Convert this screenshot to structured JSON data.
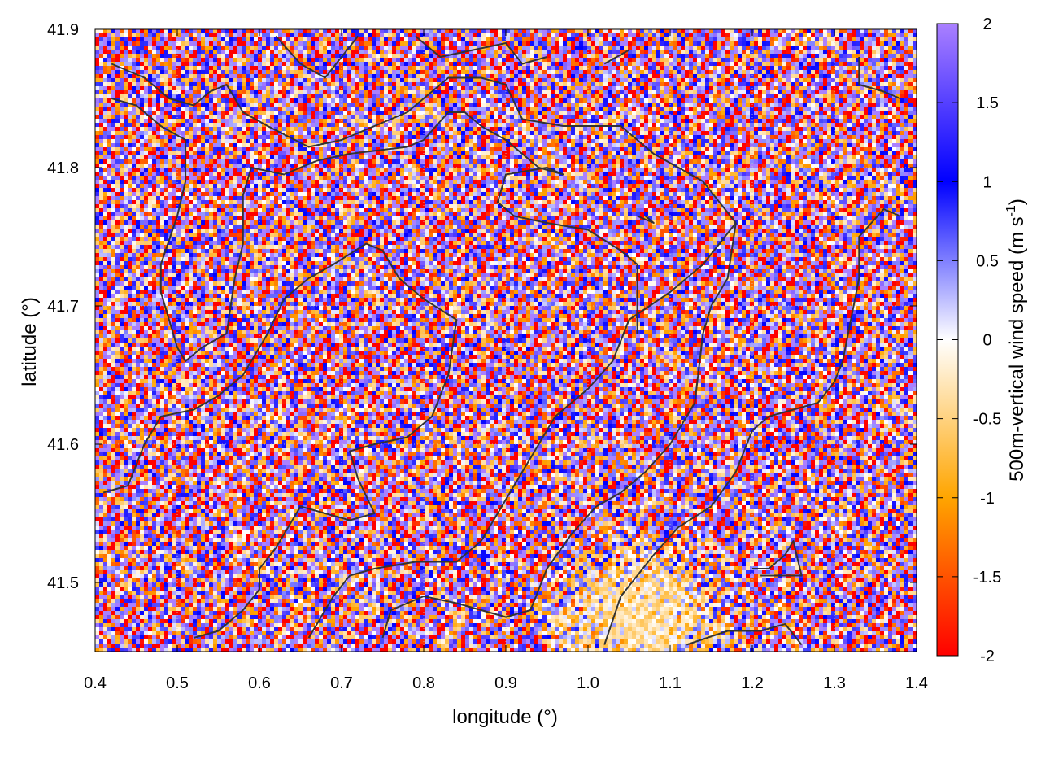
{
  "chart_data": {
    "type": "heatmap",
    "title": "",
    "xlabel": "longitude (°)",
    "ylabel": "latitude (°)",
    "xlim": [
      0.4,
      1.4
    ],
    "ylim": [
      41.45,
      41.9
    ],
    "xticks": [
      0.4,
      0.5,
      0.6,
      0.7,
      0.8,
      0.9,
      1.0,
      1.1,
      1.2,
      1.3,
      1.4
    ],
    "xtick_labels": [
      "0.4",
      "0.5",
      "0.6",
      "0.7",
      "0.8",
      "0.9",
      "1.0",
      "1.1",
      "1.2",
      "1.3",
      "1.4"
    ],
    "yticks": [
      41.5,
      41.6,
      41.7,
      41.8,
      41.9
    ],
    "ytick_labels": [
      "41.5",
      "41.6",
      "41.7",
      "41.8",
      "41.9"
    ],
    "colorbar": {
      "label": "500m-vertical wind speed (m s-1)",
      "label_main": "500m-vertical wind speed (m s",
      "label_sup": "-1",
      "label_end": ")",
      "range": [
        -2,
        2
      ],
      "ticks": [
        2,
        1.5,
        1,
        0.5,
        0,
        -0.5,
        -1,
        -1.5,
        -2
      ],
      "tick_labels": [
        "2",
        "1.5",
        "1",
        "0.5",
        "0",
        "-0.5",
        "-1",
        "-1.5",
        "-2"
      ],
      "colormap": [
        {
          "value": -2,
          "color": "#ff0000"
        },
        {
          "value": -1,
          "color": "#ffa500"
        },
        {
          "value": 0,
          "color": "#ffffff"
        },
        {
          "value": 1,
          "color": "#0000ff"
        },
        {
          "value": 2,
          "color": "#aa80ff"
        }
      ]
    },
    "grid": true,
    "field_description": "Dense fine-scale alternating updraft/downdraft streaks, values mostly between -2 and 2 m/s; smoother weak negative region around lon 0.95-1.15, lat 41.45-41.55",
    "coastline_paths": [
      [
        [
          0.42,
          41.875
        ],
        [
          0.46,
          41.865
        ],
        [
          0.49,
          41.85
        ],
        [
          0.52,
          41.845
        ],
        [
          0.54,
          41.855
        ],
        [
          0.56,
          41.86
        ],
        [
          0.58,
          41.84
        ],
        [
          0.61,
          41.83
        ],
        [
          0.66,
          41.815
        ],
        [
          0.7,
          41.82
        ],
        [
          0.74,
          41.83
        ],
        [
          0.78,
          41.84
        ],
        [
          0.8,
          41.85
        ],
        [
          0.83,
          41.865
        ],
        [
          0.87,
          41.865
        ],
        [
          0.9,
          41.86
        ],
        [
          0.92,
          41.835
        ],
        [
          0.97,
          41.83
        ],
        [
          1.04,
          41.83
        ],
        [
          1.08,
          41.81
        ],
        [
          1.14,
          41.79
        ],
        [
          1.18,
          41.76
        ]
      ],
      [
        [
          0.42,
          41.85
        ],
        [
          0.45,
          41.845
        ],
        [
          0.48,
          41.83
        ],
        [
          0.51,
          41.82
        ],
        [
          0.51,
          41.79
        ],
        [
          0.5,
          41.765
        ],
        [
          0.48,
          41.73
        ],
        [
          0.48,
          41.71
        ],
        [
          0.5,
          41.67
        ],
        [
          0.51,
          41.66
        ],
        [
          0.53,
          41.67
        ],
        [
          0.56,
          41.68
        ],
        [
          0.57,
          41.72
        ],
        [
          0.58,
          41.745
        ],
        [
          0.58,
          41.78
        ],
        [
          0.59,
          41.8
        ],
        [
          0.63,
          41.795
        ],
        [
          0.67,
          41.805
        ],
        [
          0.71,
          41.81
        ],
        [
          0.78,
          41.815
        ],
        [
          0.8,
          41.82
        ],
        [
          0.83,
          41.84
        ],
        [
          0.85,
          41.84
        ],
        [
          0.87,
          41.83
        ],
        [
          0.9,
          41.82
        ],
        [
          0.92,
          41.81
        ],
        [
          0.94,
          41.8
        ],
        [
          0.97,
          41.795
        ],
        [
          0.95,
          41.8
        ],
        [
          0.9,
          41.795
        ],
        [
          0.89,
          41.775
        ],
        [
          0.91,
          41.765
        ],
        [
          0.95,
          41.76
        ],
        [
          1.0,
          41.755
        ],
        [
          1.04,
          41.74
        ],
        [
          1.06,
          41.73
        ],
        [
          1.06,
          41.7
        ],
        [
          1.06,
          41.68
        ]
      ],
      [
        [
          0.41,
          41.565
        ],
        [
          0.44,
          41.57
        ],
        [
          0.46,
          41.6
        ],
        [
          0.48,
          41.62
        ],
        [
          0.52,
          41.625
        ],
        [
          0.55,
          41.635
        ],
        [
          0.58,
          41.65
        ],
        [
          0.61,
          41.68
        ],
        [
          0.63,
          41.705
        ],
        [
          0.66,
          41.72
        ],
        [
          0.69,
          41.73
        ],
        [
          0.73,
          41.745
        ],
        [
          0.75,
          41.74
        ],
        [
          0.77,
          41.72
        ],
        [
          0.8,
          41.705
        ],
        [
          0.84,
          41.69
        ],
        [
          0.83,
          41.65
        ],
        [
          0.81,
          41.62
        ],
        [
          0.78,
          41.605
        ],
        [
          0.74,
          41.6
        ],
        [
          0.71,
          41.595
        ],
        [
          0.72,
          41.575
        ],
        [
          0.74,
          41.55
        ],
        [
          0.71,
          41.545
        ],
        [
          0.68,
          41.55
        ],
        [
          0.65,
          41.555
        ],
        [
          0.62,
          41.525
        ],
        [
          0.6,
          41.51
        ],
        [
          0.6,
          41.495
        ],
        [
          0.58,
          41.48
        ],
        [
          0.55,
          41.465
        ],
        [
          0.52,
          41.46
        ]
      ],
      [
        [
          0.66,
          41.46
        ],
        [
          0.69,
          41.49
        ],
        [
          0.71,
          41.505
        ],
        [
          0.74,
          41.51
        ],
        [
          0.79,
          41.515
        ],
        [
          0.84,
          41.515
        ],
        [
          0.87,
          41.53
        ],
        [
          0.9,
          41.56
        ],
        [
          0.93,
          41.59
        ],
        [
          0.96,
          41.62
        ],
        [
          1.0,
          41.64
        ],
        [
          1.03,
          41.66
        ],
        [
          1.05,
          41.69
        ],
        [
          1.1,
          41.71
        ],
        [
          1.14,
          41.73
        ],
        [
          1.18,
          41.76
        ]
      ],
      [
        [
          0.75,
          41.46
        ],
        [
          0.76,
          41.48
        ],
        [
          0.8,
          41.49
        ],
        [
          0.84,
          41.485
        ],
        [
          0.87,
          41.48
        ],
        [
          0.9,
          41.475
        ],
        [
          0.93,
          41.48
        ],
        [
          0.95,
          41.51
        ],
        [
          0.98,
          41.535
        ],
        [
          1.01,
          41.555
        ],
        [
          1.04,
          41.565
        ],
        [
          1.07,
          41.58
        ],
        [
          1.1,
          41.6
        ],
        [
          1.13,
          41.63
        ],
        [
          1.14,
          41.68
        ],
        [
          1.15,
          41.7
        ],
        [
          1.17,
          41.72
        ],
        [
          1.18,
          41.76
        ]
      ],
      [
        [
          1.02,
          41.455
        ],
        [
          1.04,
          41.49
        ],
        [
          1.08,
          41.52
        ],
        [
          1.11,
          41.54
        ],
        [
          1.15,
          41.555
        ],
        [
          1.18,
          41.58
        ],
        [
          1.2,
          41.61
        ],
        [
          1.22,
          41.62
        ],
        [
          1.25,
          41.625
        ],
        [
          1.28,
          41.63
        ],
        [
          1.3,
          41.645
        ],
        [
          1.31,
          41.66
        ],
        [
          1.32,
          41.69
        ],
        [
          1.33,
          41.72
        ],
        [
          1.33,
          41.75
        ],
        [
          1.36,
          41.77
        ],
        [
          1.38,
          41.765
        ]
      ],
      [
        [
          1.12,
          41.455
        ],
        [
          1.17,
          41.465
        ],
        [
          1.21,
          41.465
        ],
        [
          1.24,
          41.47
        ],
        [
          1.26,
          41.455
        ]
      ],
      [
        [
          1.2,
          41.51
        ],
        [
          1.22,
          41.51
        ],
        [
          1.24,
          41.52
        ],
        [
          1.25,
          41.53
        ],
        [
          1.26,
          41.505
        ],
        [
          1.24,
          41.505
        ],
        [
          1.21,
          41.505
        ]
      ],
      [
        [
          1.33,
          41.88
        ],
        [
          1.33,
          41.86
        ],
        [
          1.36,
          41.855
        ],
        [
          1.38,
          41.85
        ]
      ],
      [
        [
          0.62,
          41.895
        ],
        [
          0.65,
          41.875
        ],
        [
          0.68,
          41.865
        ],
        [
          0.7,
          41.88
        ],
        [
          0.72,
          41.895
        ]
      ],
      [
        [
          0.79,
          41.895
        ],
        [
          0.82,
          41.88
        ],
        [
          0.86,
          41.885
        ],
        [
          0.9,
          41.89
        ],
        [
          0.92,
          41.875
        ],
        [
          0.95,
          41.88
        ]
      ],
      [
        [
          1.02,
          41.875
        ],
        [
          1.05,
          41.885
        ]
      ],
      [
        [
          1.06,
          41.765
        ],
        [
          1.08,
          41.76
        ],
        [
          1.07,
          41.765
        ]
      ]
    ]
  }
}
